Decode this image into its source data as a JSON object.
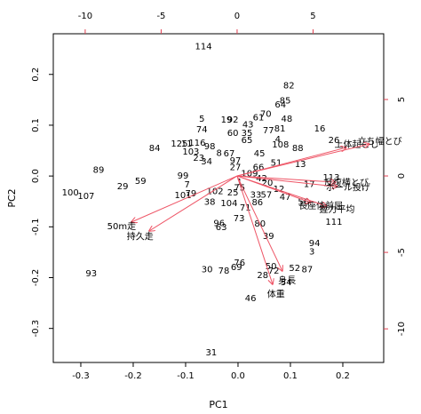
{
  "chart_data": {
    "type": "biplot",
    "xlabel": "PC1",
    "ylabel": "PC2",
    "xlim": [
      -0.3525,
      0.278
    ],
    "ylim": [
      -0.367,
      0.28
    ],
    "xticks": [
      -0.3,
      -0.2,
      -0.1,
      {
        "value": 0,
        "label": "0.0"
      },
      0.1,
      0.2
    ],
    "yticks": [
      -0.3,
      -0.2,
      -0.1,
      {
        "value": 0,
        "label": "0.0"
      },
      0.1,
      0.2
    ],
    "x2lim": [
      -12.1,
      9.65
    ],
    "y2lim": [
      -12.2,
      9.3
    ],
    "x2ticks": [
      -10,
      -5,
      0,
      5
    ],
    "y2ticks": [
      -10,
      -5,
      0,
      5
    ],
    "points": {
      "color": "#000000",
      "labels": [
        "114",
        "82",
        "85",
        "64",
        "70",
        "61",
        "48",
        "5",
        "19",
        "92",
        "43",
        "77",
        "81",
        "74",
        "60",
        "35",
        "16",
        "65",
        "26",
        "4",
        "88",
        "84",
        "125",
        "11",
        "116",
        "98",
        "103",
        "13",
        "51",
        "45",
        "108",
        "89",
        "59",
        "29",
        "100",
        "107",
        "99",
        "7",
        "101",
        "79",
        "102",
        "113",
        "17",
        "12",
        "47",
        "56",
        "111",
        "38",
        "33",
        "57",
        "104",
        "86",
        "8",
        "67",
        "73",
        "80",
        "96",
        "63",
        "71",
        "39",
        "94",
        "3",
        "50",
        "52",
        "87",
        "30",
        "78",
        "69",
        "76",
        "72",
        "28",
        "54",
        "93",
        "46",
        "31",
        "27",
        "66",
        "20",
        "25",
        "75",
        "109",
        "1",
        "97",
        "42",
        "34",
        "23"
      ],
      "x": [
        -0.066,
        0.097,
        0.09,
        0.081,
        0.053,
        0.039,
        0.093,
        -0.069,
        -0.022,
        -0.01,
        0.019,
        0.058,
        0.08,
        -0.069,
        -0.01,
        0.017,
        0.156,
        0.017,
        0.183,
        0.076,
        0.114,
        -0.159,
        -0.112,
        -0.098,
        -0.078,
        -0.054,
        -0.09,
        0.119,
        0.073,
        0.041,
        0.081,
        -0.266,
        -0.186,
        -0.22,
        -0.32,
        -0.29,
        -0.105,
        -0.097,
        -0.105,
        -0.09,
        -0.044,
        0.178,
        0.136,
        0.078,
        0.09,
        0.125,
        0.183,
        -0.054,
        0.034,
        0.054,
        -0.017,
        0.037,
        -0.036,
        -0.017,
        0.002,
        0.042,
        -0.036,
        -0.032,
        0.014,
        0.058,
        0.146,
        0.141,
        0.063,
        0.108,
        0.132,
        -0.059,
        -0.027,
        -0.003,
        0.003,
        0.068,
        0.047,
        0.092,
        -0.28,
        0.024,
        -0.051,
        -0.005,
        0.039,
        0.056,
        -0.01,
        0.003,
        0.022,
        0.003,
        -0.005,
        0.045,
        -0.06,
        -0.075
      ],
      "y": [
        0.255,
        0.178,
        0.148,
        0.14,
        0.122,
        0.115,
        0.112,
        0.112,
        0.11,
        0.11,
        0.101,
        0.089,
        0.093,
        0.091,
        0.084,
        0.084,
        0.093,
        0.07,
        0.07,
        0.072,
        0.054,
        0.054,
        0.063,
        0.063,
        0.065,
        0.058,
        0.047,
        0.023,
        0.026,
        0.044,
        0.061,
        0.012,
        -0.01,
        -0.021,
        -0.033,
        -0.04,
        0,
        -0.017,
        -0.038,
        -0.035,
        -0.03,
        -0.003,
        -0.016,
        -0.026,
        -0.042,
        -0.051,
        -0.091,
        -0.051,
        -0.037,
        -0.037,
        -0.054,
        -0.052,
        0.045,
        0.044,
        -0.084,
        -0.094,
        -0.093,
        -0.101,
        -0.063,
        -0.119,
        -0.133,
        -0.149,
        -0.178,
        -0.182,
        -0.184,
        -0.184,
        -0.187,
        -0.18,
        -0.171,
        -0.187,
        -0.196,
        -0.21,
        -0.192,
        -0.241,
        -0.348,
        0.017,
        0.017,
        -0.014,
        -0.033,
        -0.023,
        0.005,
        -0.012,
        0.03,
        -0.005,
        0.028,
        0.035
      ]
    },
    "arrows": {
      "color": "#ee5566",
      "labels": [
        "50m走",
        "持久走",
        "身長",
        "体重",
        "上体起こし",
        "立ち幅とび",
        "反復横とび",
        "ボール投げ",
        "長座体前屈",
        "握力平均"
      ],
      "x": [
        -6.96,
        -5.79,
        2.98,
        2.34,
        7.19,
        8.71,
        6.49,
        6.61,
        4.85,
        5.91
      ],
      "y": [
        -3.02,
        -3.6,
        -6.22,
        -7.09,
        1.86,
        2.09,
        -0.41,
        -0.7,
        -1.74,
        -1.98
      ]
    }
  }
}
